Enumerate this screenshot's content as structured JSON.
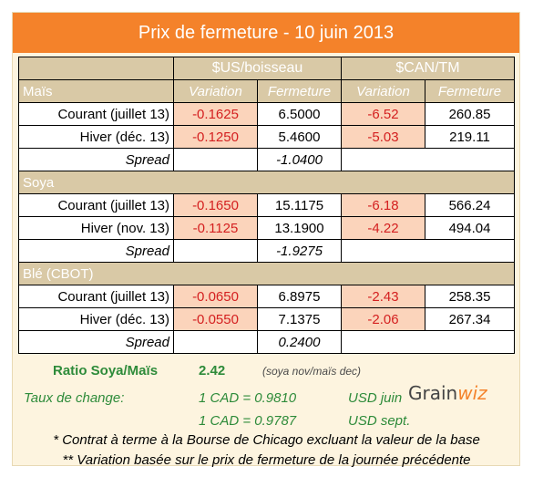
{
  "title": "Prix de fermeture - 10 juin 2013",
  "headers": {
    "us_group": "$US/boisseau",
    "can_group": "$CAN/TM",
    "variation": "Variation",
    "fermeture": "Fermeture"
  },
  "sections": [
    {
      "name": "Maïs",
      "rows": [
        {
          "label": "Courant (juillet 13)",
          "us_var": "-0.1625",
          "us_close": "6.5000",
          "can_var": "-6.52",
          "can_close": "260.85"
        },
        {
          "label": "Hiver (déc. 13)",
          "us_var": "-0.1250",
          "us_close": "5.4600",
          "can_var": "-5.03",
          "can_close": "219.11"
        }
      ],
      "spread_label": "Spread",
      "spread_value": "-1.0400"
    },
    {
      "name": "Soya",
      "rows": [
        {
          "label": "Courant (juillet 13)",
          "us_var": "-0.1650",
          "us_close": "15.1175",
          "can_var": "-6.18",
          "can_close": "566.24"
        },
        {
          "label": "Hiver (nov. 13)",
          "us_var": "-0.1125",
          "us_close": "13.1900",
          "can_var": "-4.22",
          "can_close": "494.04"
        }
      ],
      "spread_label": "Spread",
      "spread_value": "-1.9275"
    },
    {
      "name": "Blé (CBOT)",
      "rows": [
        {
          "label": "Courant (juillet 13)",
          "us_var": "-0.0650",
          "us_close": "6.8975",
          "can_var": "-2.43",
          "can_close": "258.35"
        },
        {
          "label": "Hiver (déc. 13)",
          "us_var": "-0.0550",
          "us_close": "7.1375",
          "can_var": "-2.06",
          "can_close": "267.34"
        }
      ],
      "spread_label": "Spread",
      "spread_value": "0.2400"
    }
  ],
  "ratio": {
    "label": "Ratio Soya/Maïs",
    "value": "2.42",
    "note": "(soya nov/maïs dec)"
  },
  "exchange": {
    "label": "Taux de change:",
    "rate1": "1 CAD =  0.9810",
    "unit1": "USD juin",
    "rate2": "1 CAD =  0.9787",
    "unit2": "USD sept."
  },
  "logo": {
    "text": "Grain",
    "accent": "wiz"
  },
  "notes": [
    "* Contrat à terme à la Bourse de Chicago excluant la valeur de la base",
    "** Variation basée sur le prix de fermeture de la journée précédente"
  ],
  "colors": {
    "title_bg": "#f4822a",
    "header_bg": "#d9c9a6",
    "variation_bg": "#fbd4bb",
    "negative": "#d42020",
    "info_green": "#2e8b3a"
  }
}
